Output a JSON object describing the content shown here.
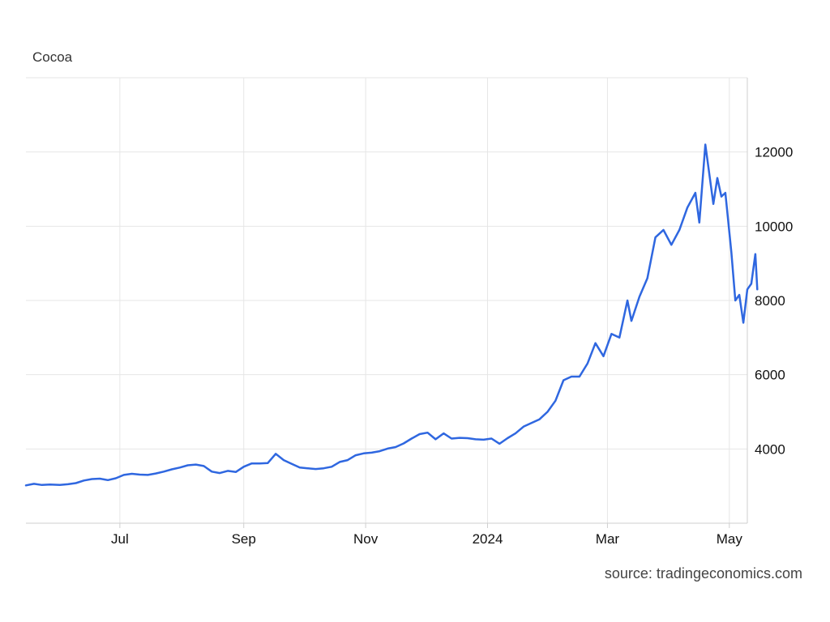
{
  "chart_data": {
    "type": "line",
    "title": "Cocoa",
    "xlabel": "",
    "ylabel": "",
    "source": "source: tradingeconomics.com",
    "x_range": [
      "2023-05-15",
      "2024-05-10"
    ],
    "ylim": [
      2000,
      14000
    ],
    "y_ticks": [
      4000,
      6000,
      8000,
      10000,
      12000
    ],
    "y_tick_labels": [
      "4000",
      "6000",
      "8000",
      "10000",
      "12000"
    ],
    "x_ticks": [
      {
        "date": "2023-07-01",
        "label": "Jul"
      },
      {
        "date": "2023-09-01",
        "label": "Sep"
      },
      {
        "date": "2023-11-01",
        "label": "Nov"
      },
      {
        "date": "2024-01-01",
        "label": "2024"
      },
      {
        "date": "2024-03-01",
        "label": "Mar"
      },
      {
        "date": "2024-05-01",
        "label": "May"
      }
    ],
    "grid": true,
    "line_color": "#2f67e0",
    "series": [
      {
        "points": [
          [
            "2023-05-15",
            3020
          ],
          [
            "2023-05-19",
            3060
          ],
          [
            "2023-05-23",
            3030
          ],
          [
            "2023-05-27",
            3040
          ],
          [
            "2023-06-01",
            3030
          ],
          [
            "2023-06-05",
            3050
          ],
          [
            "2023-06-09",
            3080
          ],
          [
            "2023-06-13",
            3150
          ],
          [
            "2023-06-17",
            3190
          ],
          [
            "2023-06-21",
            3200
          ],
          [
            "2023-06-25",
            3160
          ],
          [
            "2023-06-29",
            3210
          ],
          [
            "2023-07-03",
            3300
          ],
          [
            "2023-07-07",
            3330
          ],
          [
            "2023-07-11",
            3310
          ],
          [
            "2023-07-15",
            3300
          ],
          [
            "2023-07-19",
            3340
          ],
          [
            "2023-07-23",
            3390
          ],
          [
            "2023-07-27",
            3450
          ],
          [
            "2023-07-31",
            3500
          ],
          [
            "2023-08-04",
            3560
          ],
          [
            "2023-08-08",
            3580
          ],
          [
            "2023-08-12",
            3540
          ],
          [
            "2023-08-16",
            3390
          ],
          [
            "2023-08-20",
            3350
          ],
          [
            "2023-08-24",
            3410
          ],
          [
            "2023-08-28",
            3380
          ],
          [
            "2023-09-01",
            3520
          ],
          [
            "2023-09-05",
            3610
          ],
          [
            "2023-09-09",
            3610
          ],
          [
            "2023-09-13",
            3620
          ],
          [
            "2023-09-17",
            3870
          ],
          [
            "2023-09-21",
            3700
          ],
          [
            "2023-09-25",
            3600
          ],
          [
            "2023-09-29",
            3500
          ],
          [
            "2023-10-03",
            3480
          ],
          [
            "2023-10-07",
            3460
          ],
          [
            "2023-10-11",
            3480
          ],
          [
            "2023-10-15",
            3520
          ],
          [
            "2023-10-19",
            3650
          ],
          [
            "2023-10-23",
            3700
          ],
          [
            "2023-10-27",
            3830
          ],
          [
            "2023-10-31",
            3880
          ],
          [
            "2023-11-04",
            3900
          ],
          [
            "2023-11-08",
            3940
          ],
          [
            "2023-11-12",
            4010
          ],
          [
            "2023-11-16",
            4050
          ],
          [
            "2023-11-20",
            4150
          ],
          [
            "2023-11-24",
            4280
          ],
          [
            "2023-11-28",
            4400
          ],
          [
            "2023-12-02",
            4440
          ],
          [
            "2023-12-06",
            4260
          ],
          [
            "2023-12-10",
            4420
          ],
          [
            "2023-12-14",
            4280
          ],
          [
            "2023-12-18",
            4300
          ],
          [
            "2023-12-22",
            4290
          ],
          [
            "2023-12-26",
            4260
          ],
          [
            "2023-12-30",
            4250
          ],
          [
            "2024-01-03",
            4280
          ],
          [
            "2024-01-07",
            4140
          ],
          [
            "2024-01-11",
            4290
          ],
          [
            "2024-01-15",
            4420
          ],
          [
            "2024-01-19",
            4600
          ],
          [
            "2024-01-23",
            4700
          ],
          [
            "2024-01-27",
            4800
          ],
          [
            "2024-01-31",
            5000
          ],
          [
            "2024-02-04",
            5300
          ],
          [
            "2024-02-08",
            5850
          ],
          [
            "2024-02-12",
            5950
          ],
          [
            "2024-02-16",
            5950
          ],
          [
            "2024-02-20",
            6300
          ],
          [
            "2024-02-24",
            6850
          ],
          [
            "2024-02-28",
            6500
          ],
          [
            "2024-03-03",
            7100
          ],
          [
            "2024-03-07",
            7000
          ],
          [
            "2024-03-11",
            8000
          ],
          [
            "2024-03-13",
            7450
          ],
          [
            "2024-03-17",
            8100
          ],
          [
            "2024-03-21",
            8600
          ],
          [
            "2024-03-25",
            9700
          ],
          [
            "2024-03-29",
            9900
          ],
          [
            "2024-04-02",
            9500
          ],
          [
            "2024-04-06",
            9900
          ],
          [
            "2024-04-10",
            10500
          ],
          [
            "2024-04-14",
            10900
          ],
          [
            "2024-04-16",
            10100
          ],
          [
            "2024-04-19",
            12200
          ],
          [
            "2024-04-23",
            10600
          ],
          [
            "2024-04-25",
            11300
          ],
          [
            "2024-04-27",
            10800
          ],
          [
            "2024-04-29",
            10900
          ],
          [
            "2024-05-02",
            9300
          ],
          [
            "2024-05-04",
            8000
          ],
          [
            "2024-05-06",
            8150
          ],
          [
            "2024-05-08",
            7400
          ],
          [
            "2024-05-10",
            8300
          ],
          [
            "2024-05-12",
            8450
          ],
          [
            "2024-05-14",
            9250
          ],
          [
            "2024-05-15",
            8300
          ]
        ]
      }
    ]
  }
}
